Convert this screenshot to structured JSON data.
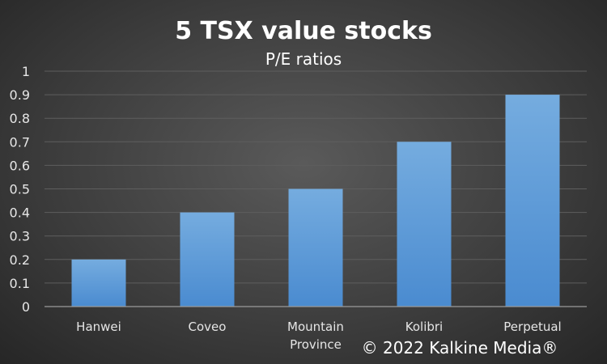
{
  "chart_data": {
    "type": "bar",
    "title": "5 TSX value stocks",
    "subtitle": "P/E ratios",
    "categories": [
      "Hanwei",
      "Coveo",
      "Mountain Province",
      "Kolibri",
      "Perpetual"
    ],
    "values": [
      0.2,
      0.4,
      0.5,
      0.7,
      0.9
    ],
    "xlabel": "",
    "ylabel": "",
    "ylim": [
      0,
      1
    ],
    "yticks": [
      "0",
      "0.1",
      "0.2",
      "0.3",
      "0.4",
      "0.5",
      "0.6",
      "0.7",
      "0.8",
      "0.9",
      "1"
    ],
    "grid": true,
    "bar_color": "#5b9bd5",
    "bar_color_light": "#75acdf",
    "copyright": "© 2022 Kalkine Media®"
  }
}
